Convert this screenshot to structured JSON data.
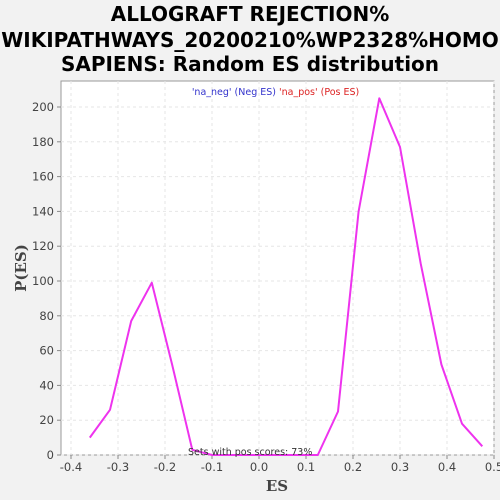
{
  "chart_data": {
    "type": "line",
    "title_lines": [
      "ALLOGRAFT REJECTION%",
      "WIKIPATHWAYS_20200210%WP2328%HOMO",
      "SAPIENS: Random ES distribution"
    ],
    "xlabel": "ES",
    "ylabel": "P(ES)",
    "xlim": [
      -0.4,
      0.52
    ],
    "ylim": [
      0,
      215
    ],
    "xticks": [
      -0.4,
      -0.3,
      -0.2,
      -0.1,
      0,
      0.1,
      0.2,
      0.3,
      0.4,
      0.5
    ],
    "xtick_labels": [
      "-0.4",
      "-0.3",
      "-0.2",
      "-0.1",
      "0.0",
      "0.1",
      "0.2",
      "0.3",
      "0.4",
      "0.5"
    ],
    "yticks": [
      0,
      20,
      40,
      60,
      80,
      100,
      120,
      140,
      160,
      180,
      200
    ],
    "ytick_labels": [
      "0",
      "20",
      "40",
      "60",
      "80",
      "100",
      "120",
      "140",
      "160",
      "180",
      "200"
    ],
    "grid": true,
    "legend": {
      "placement": "top-center",
      "entries": [
        {
          "text": "'na_neg' (Neg ES)",
          "color": "#3333cc"
        },
        {
          "text": "'na_pos' (Pos ES)",
          "color": "#dd2222"
        }
      ]
    },
    "annotation": "Sets with pos scores: 73%",
    "series": [
      {
        "color": "#ee33ee",
        "x": [
          -0.36,
          -0.317,
          -0.272,
          -0.228,
          -0.185,
          -0.142,
          -0.1,
          0.125,
          0.168,
          0.212,
          0.256,
          0.3,
          0.344,
          0.388,
          0.432,
          0.475
        ],
        "y": [
          10,
          26,
          77,
          99,
          52,
          3,
          0,
          0,
          25,
          140,
          205,
          177,
          110,
          52,
          18,
          5
        ]
      }
    ]
  }
}
